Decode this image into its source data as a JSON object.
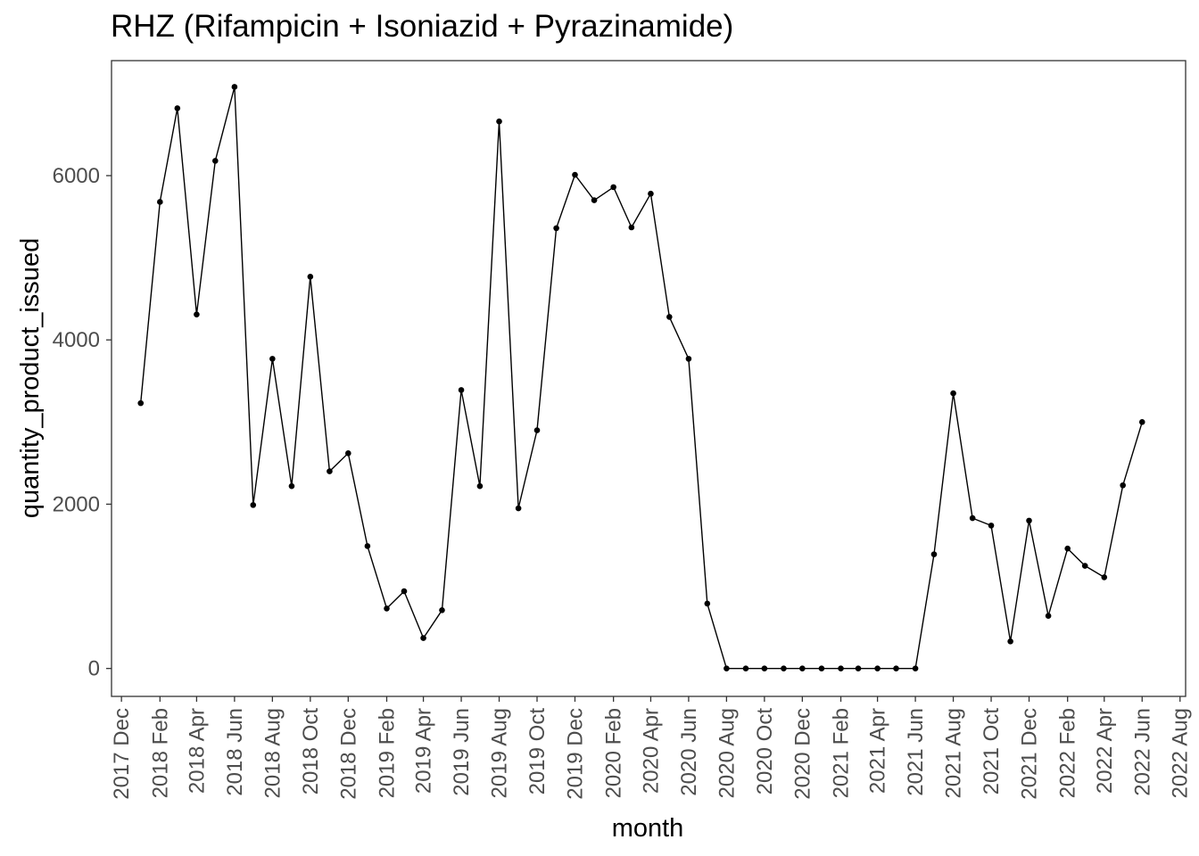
{
  "chart_data": {
    "type": "line",
    "title": "RHZ (Rifampicin + Isoniazid + Pyrazinamide)",
    "xlabel": "month",
    "ylabel": "quantity_product_issued",
    "x_tick_labels": [
      "2017 Dec",
      "2018 Feb",
      "2018 Apr",
      "2018 Jun",
      "2018 Aug",
      "2018 Oct",
      "2018 Dec",
      "2019 Feb",
      "2019 Apr",
      "2019 Jun",
      "2019 Aug",
      "2019 Oct",
      "2019 Dec",
      "2020 Feb",
      "2020 Apr",
      "2020 Jun",
      "2020 Aug",
      "2020 Oct",
      "2020 Dec",
      "2021 Feb",
      "2021 Apr",
      "2021 Jun",
      "2021 Aug",
      "2021 Oct",
      "2021 Dec",
      "2022 Feb",
      "2022 Apr",
      "2022 Jun",
      "2022 Aug"
    ],
    "y_ticks": [
      0,
      2000,
      4000,
      6000
    ],
    "ylim": [
      -340,
      7400
    ],
    "xlim": [
      "2017-11-15",
      "2022-08-10"
    ],
    "grid": false,
    "x": [
      "2018-01",
      "2018-02",
      "2018-03",
      "2018-04",
      "2018-05",
      "2018-06",
      "2018-07",
      "2018-08",
      "2018-09",
      "2018-10",
      "2018-11",
      "2018-12",
      "2019-01",
      "2019-02",
      "2019-03",
      "2019-04",
      "2019-05",
      "2019-06",
      "2019-07",
      "2019-08",
      "2019-09",
      "2019-10",
      "2019-11",
      "2019-12",
      "2020-01",
      "2020-02",
      "2020-03",
      "2020-04",
      "2020-05",
      "2020-06",
      "2020-07",
      "2020-08",
      "2020-09",
      "2020-10",
      "2020-11",
      "2020-12",
      "2021-01",
      "2021-02",
      "2021-03",
      "2021-04",
      "2021-05",
      "2021-06",
      "2021-07",
      "2021-08",
      "2021-09",
      "2021-10",
      "2021-11",
      "2021-12",
      "2022-01",
      "2022-02",
      "2022-03",
      "2022-04",
      "2022-05",
      "2022-06"
    ],
    "values": [
      3230,
      5680,
      6820,
      4310,
      6180,
      7080,
      1990,
      3770,
      2220,
      4770,
      2400,
      2620,
      1490,
      730,
      940,
      370,
      710,
      3390,
      2220,
      6660,
      1950,
      2900,
      5360,
      6010,
      5700,
      5860,
      5370,
      5780,
      4280,
      3770,
      790,
      0,
      0,
      0,
      0,
      0,
      0,
      0,
      0,
      0,
      0,
      0,
      1390,
      3350,
      1830,
      1740,
      330,
      1800,
      640,
      1460,
      1250,
      1110,
      2230,
      3000
    ],
    "line_color": "#000000",
    "point_color": "#000000",
    "panel_border_color": "#333333"
  }
}
